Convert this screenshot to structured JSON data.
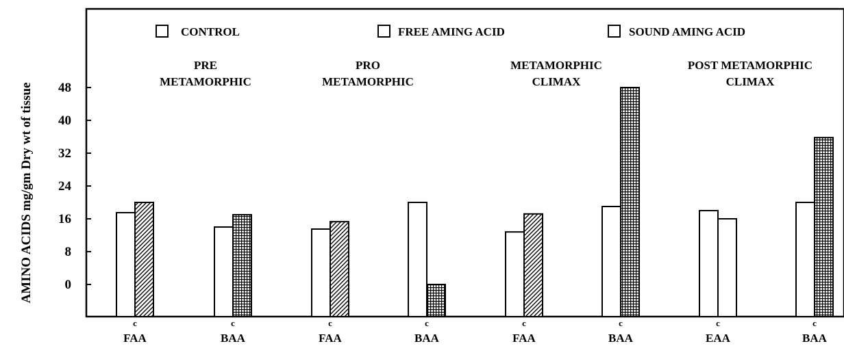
{
  "chart_data": {
    "type": "bar",
    "ylabel": "AMINO ACIDS mg/gm Dry wt of tissue",
    "xlabel": "",
    "y_tick_labels": [
      "0",
      "8",
      "16",
      "24",
      "32",
      "40",
      "48"
    ],
    "ylim": [
      -8,
      56
    ],
    "grid": false,
    "legend_position": "top",
    "legend": [
      {
        "label": "CONTROL",
        "pattern": "plain"
      },
      {
        "label": "FREE AMING ACID",
        "pattern": "hatched"
      },
      {
        "label": "SOUND AMING ACID",
        "pattern": "crosshatch"
      }
    ],
    "stage_labels": [
      {
        "lines": [
          "PRE",
          "METAMORPHIC"
        ]
      },
      {
        "lines": [
          "PRO",
          "METAMORPHIC"
        ]
      },
      {
        "lines": [
          "METAMORPHIC",
          "CLIMAX"
        ]
      },
      {
        "lines": [
          "POST METAMORPHIC",
          "CLIMAX"
        ]
      }
    ],
    "categories": [
      {
        "sub": "c",
        "label": "FAA"
      },
      {
        "sub": "c",
        "label": "BAA"
      },
      {
        "sub": "c",
        "label": "FAA"
      },
      {
        "sub": "c",
        "label": "BAA"
      },
      {
        "sub": "c",
        "label": "FAA"
      },
      {
        "sub": "c",
        "label": "BAA"
      },
      {
        "sub": "c",
        "label": "EAA"
      },
      {
        "sub": "c",
        "label": "BAA"
      }
    ],
    "series": [
      {
        "name": "CONTROL",
        "pattern": "plain",
        "values": [
          17.5,
          14,
          13.5,
          20,
          12.8,
          19,
          18,
          20
        ]
      },
      {
        "name": "",
        "pattern": "varies",
        "values": [
          20,
          17,
          15.3,
          0,
          17.2,
          48,
          16,
          35.8
        ],
        "patterns": [
          "hatched",
          "crosshatch",
          "hatched",
          "crosshatch",
          "hatched",
          "crosshatch",
          "plain",
          "crosshatch"
        ]
      }
    ]
  }
}
